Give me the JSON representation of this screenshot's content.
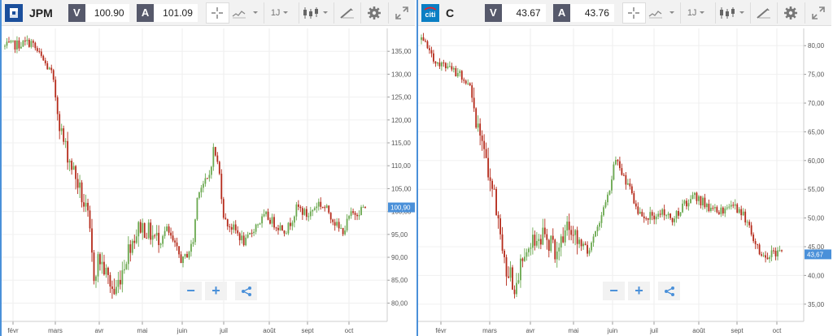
{
  "panels": [
    {
      "symbol": "JPM",
      "logo": "jpm-logo",
      "bid_label": "V",
      "bid": "100.90",
      "ask_label": "A",
      "ask": "101.09",
      "period": "1J",
      "last_price": "100,90",
      "y_ticks": [
        "80,00",
        "85,00",
        "90,00",
        "95,00",
        "100,00",
        "105,00",
        "110,00",
        "115,00",
        "120,00",
        "125,00",
        "130,00",
        "135,00"
      ],
      "x_ticks": [
        "févr",
        "mars",
        "avr",
        "mai",
        "juin",
        "juil",
        "août",
        "sept",
        "oct"
      ]
    },
    {
      "symbol": "C",
      "logo": "citi-logo",
      "bid_label": "V",
      "bid": "43.67",
      "ask_label": "A",
      "ask": "43.76",
      "period": "1J",
      "last_price": "43,67",
      "y_ticks": [
        "35,00",
        "40,00",
        "45,00",
        "50,00",
        "55,00",
        "60,00",
        "65,00",
        "70,00",
        "75,00",
        "80,00"
      ],
      "x_ticks": [
        "févr",
        "mars",
        "avr",
        "mai",
        "juin",
        "juil",
        "août",
        "sept",
        "oct"
      ]
    }
  ],
  "controls": {
    "zoom_out": "−",
    "zoom_in": "+",
    "share_icon": "share-icon"
  },
  "colors": {
    "up": "#6aa84f",
    "down": "#b52a1a",
    "accent": "#4a90d9",
    "tag": "#56596b"
  },
  "chart_data": [
    {
      "type": "candlestick",
      "series": [
        {
          "name": "JPM"
        }
      ],
      "x": [
        "févr",
        "mars",
        "avr",
        "mai",
        "juin",
        "juil",
        "août",
        "sept",
        "oct"
      ],
      "ylim": [
        76,
        140
      ],
      "grid": true,
      "close_path": [
        [
          0,
          136
        ],
        [
          5,
          137
        ],
        [
          9,
          130
        ],
        [
          11,
          116
        ],
        [
          14,
          106
        ],
        [
          16,
          98
        ],
        [
          17,
          86
        ],
        [
          18,
          90
        ],
        [
          21,
          82
        ],
        [
          24,
          93
        ],
        [
          26,
          97
        ],
        [
          29,
          94
        ],
        [
          31,
          96
        ],
        [
          34,
          89
        ],
        [
          36,
          93
        ],
        [
          37,
          105
        ],
        [
          39,
          107
        ],
        [
          40,
          114
        ],
        [
          41,
          109
        ],
        [
          42,
          98
        ],
        [
          44,
          96
        ],
        [
          46,
          93
        ],
        [
          48,
          97
        ],
        [
          50,
          99
        ],
        [
          52,
          97
        ],
        [
          54,
          96
        ],
        [
          56,
          101
        ],
        [
          58,
          99
        ],
        [
          60,
          102
        ],
        [
          62,
          100
        ],
        [
          64,
          96
        ],
        [
          65,
          96
        ],
        [
          66,
          99
        ],
        [
          69,
          101
        ]
      ],
      "last": 100.9
    },
    {
      "type": "candlestick",
      "series": [
        {
          "name": "C"
        }
      ],
      "x": [
        "févr",
        "mars",
        "avr",
        "mai",
        "juin",
        "juil",
        "août",
        "sept",
        "oct"
      ],
      "ylim": [
        32,
        83
      ],
      "grid": true,
      "close_path": [
        [
          0,
          81
        ],
        [
          3,
          77
        ],
        [
          5,
          76
        ],
        [
          9,
          74
        ],
        [
          11,
          65
        ],
        [
          14,
          54
        ],
        [
          16,
          42
        ],
        [
          18,
          38
        ],
        [
          20,
          45
        ],
        [
          23,
          47
        ],
        [
          26,
          44
        ],
        [
          28,
          48
        ],
        [
          30,
          46
        ],
        [
          32,
          44
        ],
        [
          34,
          49
        ],
        [
          36,
          55
        ],
        [
          37,
          60
        ],
        [
          39,
          57
        ],
        [
          41,
          52
        ],
        [
          43,
          50
        ],
        [
          46,
          51
        ],
        [
          48,
          50
        ],
        [
          50,
          52
        ],
        [
          52,
          54
        ],
        [
          55,
          52
        ],
        [
          57,
          51
        ],
        [
          60,
          52
        ],
        [
          62,
          50
        ],
        [
          63,
          48
        ],
        [
          65,
          43
        ],
        [
          67,
          44
        ],
        [
          69,
          44
        ]
      ],
      "last": 43.67
    }
  ]
}
